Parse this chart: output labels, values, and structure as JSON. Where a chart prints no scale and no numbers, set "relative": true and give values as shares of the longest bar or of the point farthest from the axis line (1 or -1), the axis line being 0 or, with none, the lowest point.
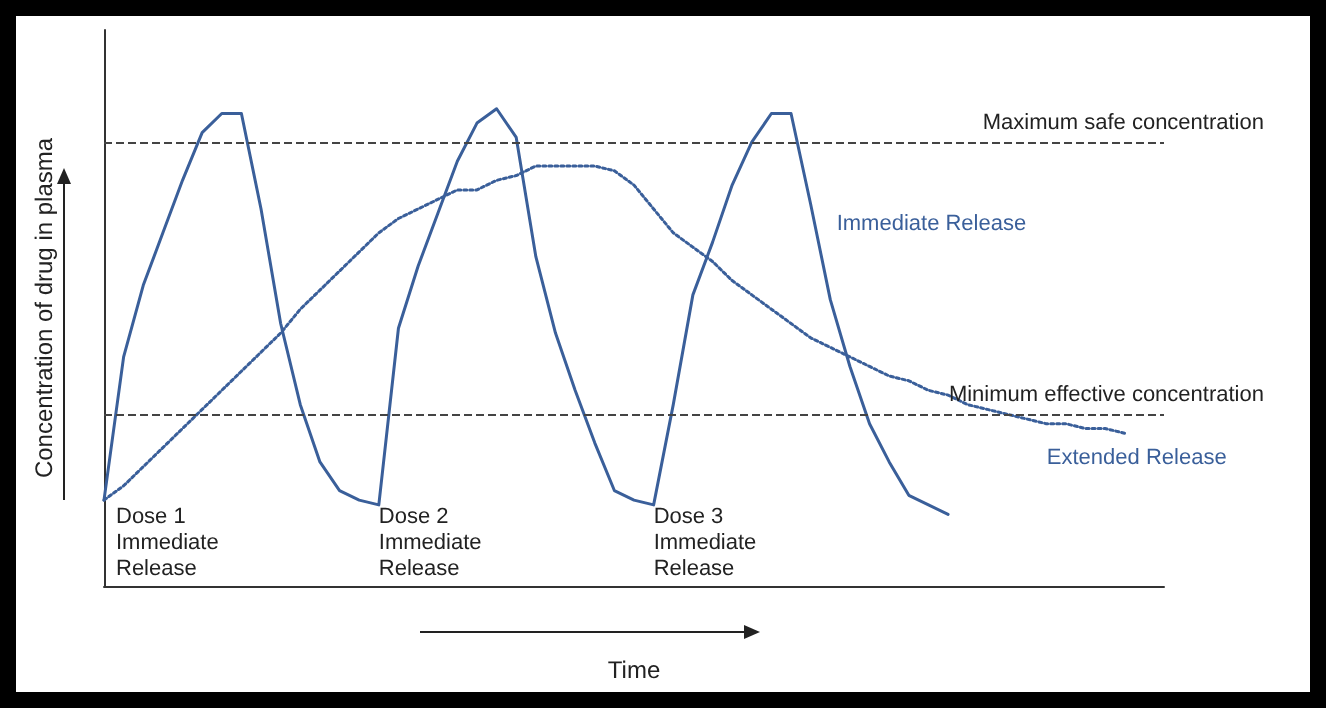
{
  "chart_data": {
    "type": "line",
    "relative": true,
    "xlabel": "Time",
    "ylabel": "Concentration of drug in plasma",
    "legend": false,
    "grid": false,
    "marker": "none",
    "categories": [
      null,
      null,
      null,
      null,
      null,
      null,
      null,
      null,
      null,
      null,
      null,
      null,
      null,
      null,
      null,
      null,
      null,
      null,
      null,
      null,
      null,
      null,
      null,
      null,
      null,
      null,
      null,
      null,
      null,
      null,
      null,
      null,
      null,
      null,
      null,
      null,
      null,
      null,
      null,
      null,
      null,
      null,
      null,
      null,
      null,
      null,
      null,
      null,
      null,
      null,
      null,
      null,
      null,
      null,
      null
    ],
    "series": [
      {
        "name": "Immediate Release",
        "color": "#3a5f9a",
        "line_style": "solid",
        "values": [
          0.18,
          0.48,
          0.63,
          0.74,
          0.85,
          0.95,
          0.99,
          0.99,
          0.79,
          0.55,
          0.38,
          0.26,
          0.2,
          0.18,
          0.17,
          0.54,
          0.67,
          0.78,
          0.89,
          0.97,
          1.0,
          0.94,
          0.69,
          0.53,
          0.41,
          0.3,
          0.2,
          0.18,
          0.17,
          0.38,
          0.61,
          0.72,
          0.84,
          0.93,
          0.99,
          0.99,
          0.8,
          0.6,
          0.46,
          0.34,
          0.26,
          0.19,
          0.17,
          0.15,
          null,
          null,
          null,
          null,
          null,
          null,
          null,
          null,
          null,
          null,
          null
        ]
      },
      {
        "name": "Extended Release",
        "color": "#3a5f9a",
        "line_style": "dotted",
        "values": [
          0.18,
          0.21,
          0.25,
          0.29,
          0.33,
          0.37,
          0.41,
          0.45,
          0.49,
          0.53,
          0.58,
          0.62,
          0.66,
          0.7,
          0.74,
          0.77,
          0.79,
          0.81,
          0.83,
          0.83,
          0.85,
          0.86,
          0.88,
          0.88,
          0.88,
          0.88,
          0.87,
          0.84,
          0.79,
          0.74,
          0.71,
          0.68,
          0.64,
          0.61,
          0.58,
          0.55,
          0.52,
          0.5,
          0.48,
          0.46,
          0.44,
          0.43,
          0.41,
          0.4,
          0.38,
          0.37,
          0.36,
          0.35,
          0.34,
          0.34,
          0.33,
          0.33,
          0.32,
          null,
          null
        ]
      }
    ],
    "ref_lines": [
      {
        "axis": "y",
        "value": 0.93,
        "label": "Maximum safe concentration",
        "color": "#444444",
        "line_style": "dashed"
      },
      {
        "axis": "y",
        "value": 0.36,
        "label": "Minimum effective concentration",
        "color": "#444444",
        "line_style": "dashed"
      }
    ],
    "annotations": [
      "Dose 1\nImmediate\nRelease",
      "Dose 2\nImmediate\nRelease",
      "Dose 3\nImmediate\nRelease"
    ]
  }
}
